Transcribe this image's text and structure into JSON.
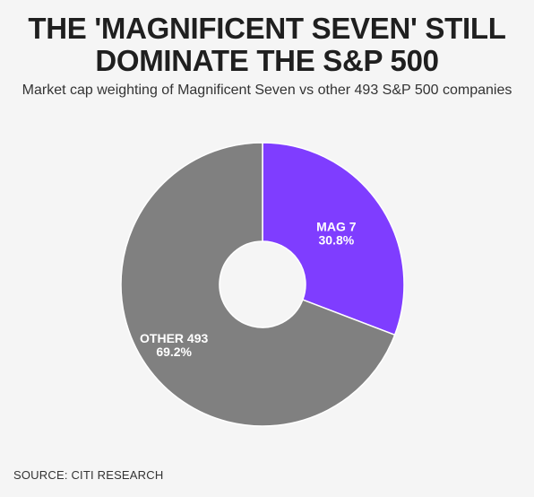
{
  "title": "THE 'MAGNIFICENT SEVEN' STILL DOMINATE THE S&P 500",
  "subtitle": "Market cap weighting of Magnificent Seven vs other 493 S&P 500 companies",
  "source": "SOURCE: CITI RESEARCH",
  "chart_data": {
    "type": "pie",
    "style": "donut",
    "slices": [
      {
        "label": "MAG 7",
        "value": 30.8,
        "value_label": "30.8%",
        "color": "#7f3dff"
      },
      {
        "label": "OTHER 493",
        "value": 69.2,
        "value_label": "69.2%",
        "color": "#808080"
      }
    ],
    "start_angle": "12 o'clock",
    "direction": "clockwise"
  }
}
